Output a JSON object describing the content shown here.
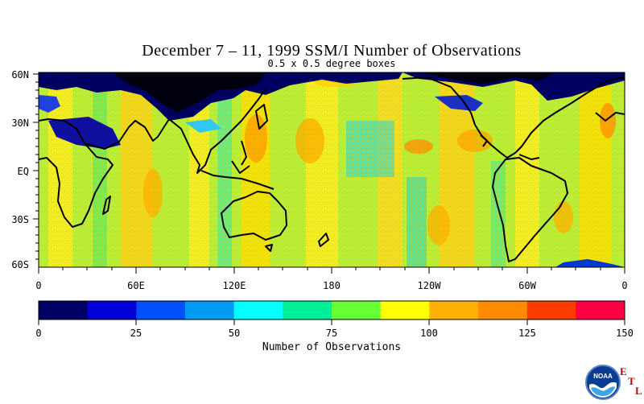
{
  "title": "December 7 – 11, 1999 SSM/I Number of Observations",
  "subtitle": "0.5 x 0.5 degree boxes",
  "latitude_labels": [
    "60N",
    "30N",
    "EQ",
    "30S",
    "60S"
  ],
  "longitude_labels": [
    "0",
    "60E",
    "120E",
    "180",
    "120W",
    "60W",
    "0"
  ],
  "colorbar": {
    "title": "Number of Observations",
    "tick_labels": [
      "0",
      "25",
      "50",
      "75",
      "100",
      "125",
      "150"
    ],
    "range": [
      0,
      150
    ],
    "colors": [
      "#000066",
      "#0000d9",
      "#0050ff",
      "#009cf6",
      "#00ffff",
      "#00f09a",
      "#66ff33",
      "#ffff00",
      "#ffb000",
      "#ff8c00",
      "#ff3c00",
      "#ff0044"
    ]
  },
  "logo": {
    "text": "NOAA",
    "letters": [
      "E",
      "T",
      "L"
    ]
  }
}
